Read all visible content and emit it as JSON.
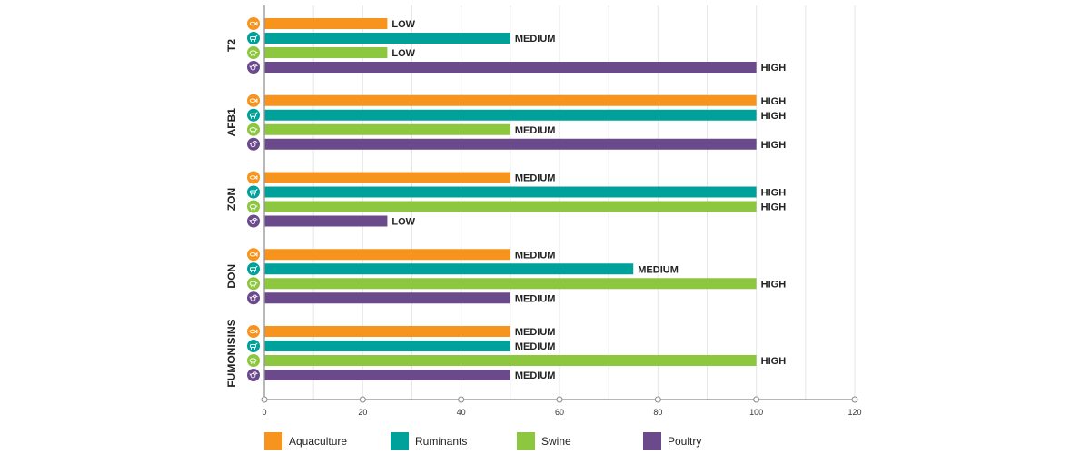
{
  "colors": {
    "Aquaculture": "#f7941d",
    "Ruminants": "#00a19a",
    "Swine": "#8dc63f",
    "Poultry": "#6b4a8b"
  },
  "chart_data": {
    "type": "bar",
    "orientation": "horizontal",
    "title": "",
    "xlabel": "",
    "ylabel": "",
    "xlim": [
      0,
      120
    ],
    "x_ticks": [
      0,
      20,
      40,
      60,
      80,
      100,
      120
    ],
    "grid": "vertical",
    "legend_position": "bottom",
    "categories": [
      "T2",
      "AFB1",
      "ZON",
      "DON",
      "FUMONISINS"
    ],
    "series": [
      {
        "name": "Aquaculture",
        "icon": "fish-icon",
        "values": [
          25,
          100,
          50,
          50,
          50
        ],
        "labels": [
          "LOW",
          "HIGH",
          "MEDIUM",
          "MEDIUM",
          "MEDIUM"
        ]
      },
      {
        "name": "Ruminants",
        "icon": "cow-icon",
        "values": [
          50,
          100,
          100,
          75,
          50
        ],
        "labels": [
          "MEDIUM",
          "HIGH",
          "HIGH",
          "MEDIUM",
          "MEDIUM"
        ]
      },
      {
        "name": "Swine",
        "icon": "pig-icon",
        "values": [
          25,
          50,
          100,
          100,
          100
        ],
        "labels": [
          "LOW",
          "MEDIUM",
          "HIGH",
          "HIGH",
          "HIGH"
        ]
      },
      {
        "name": "Poultry",
        "icon": "chicken-icon",
        "values": [
          100,
          100,
          25,
          50,
          50
        ],
        "labels": [
          "HIGH",
          "HIGH",
          "LOW",
          "MEDIUM",
          "MEDIUM"
        ]
      }
    ]
  }
}
